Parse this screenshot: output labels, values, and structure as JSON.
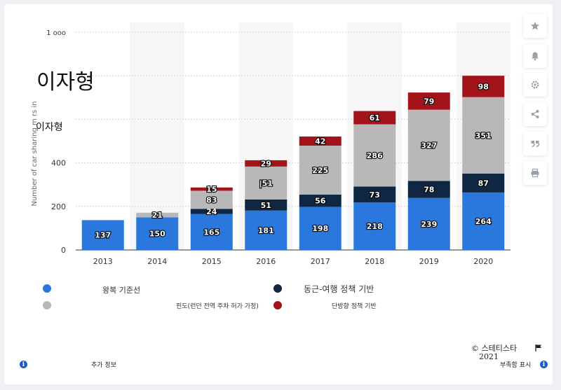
{
  "title": "이자형",
  "subtitle": "이자형",
  "chart_data": {
    "type": "bar",
    "stacked": true,
    "categories": [
      "2013",
      "2014",
      "2015",
      "2016",
      "2017",
      "2018",
      "2019",
      "2020"
    ],
    "ylabel": "Number of car sharing m     rs in",
    "ylim": [
      0,
      1000
    ],
    "yticks": [
      "0",
      "200",
      "400",
      "",
      "",
      "1 ooo"
    ],
    "grid": true,
    "series": [
      {
        "name": "왕복 기준선",
        "color": "#2a78de",
        "values": [
          137,
          150,
          165,
          181,
          198,
          218,
          239,
          264
        ]
      },
      {
        "name": "동근-여행   정책 기반",
        "color": "#0f2742",
        "values": [
          0,
          0,
          24,
          51,
          56,
          73,
          78,
          87
        ]
      },
      {
        "name": "핀도(런던 전역 주차 허가 가정)",
        "color": "#b8b8b8",
        "values": [
          0,
          21,
          83,
          151,
          225,
          286,
          327,
          351
        ]
      },
      {
        "name": "단방향 정책 기반",
        "color": "#a3131a",
        "values": [
          0,
          0,
          15,
          29,
          42,
          61,
          79,
          98
        ]
      }
    ],
    "labels": [
      [
        "137",
        "150",
        "165",
        "181",
        "198",
        "218",
        "239",
        "264"
      ],
      [
        "",
        "",
        "24",
        "51",
        "56",
        "73",
        "78",
        "87"
      ],
      [
        "",
        "21",
        "83",
        "|51",
        "225",
        "286",
        "327",
        "351"
      ],
      [
        "",
        "",
        "15",
        "29",
        "42",
        "61",
        "79",
        "98"
      ]
    ],
    "legend_position": "bottom"
  },
  "footer": {
    "copyright": "© 스테티스타",
    "year": "2021",
    "more_info": "추가 정보",
    "source_label": "부족함 표시"
  },
  "icons": [
    "star-icon",
    "bell-icon",
    "gear-icon",
    "share-icon",
    "quote-icon",
    "print-icon",
    "flag-icon",
    "info-icon"
  ]
}
